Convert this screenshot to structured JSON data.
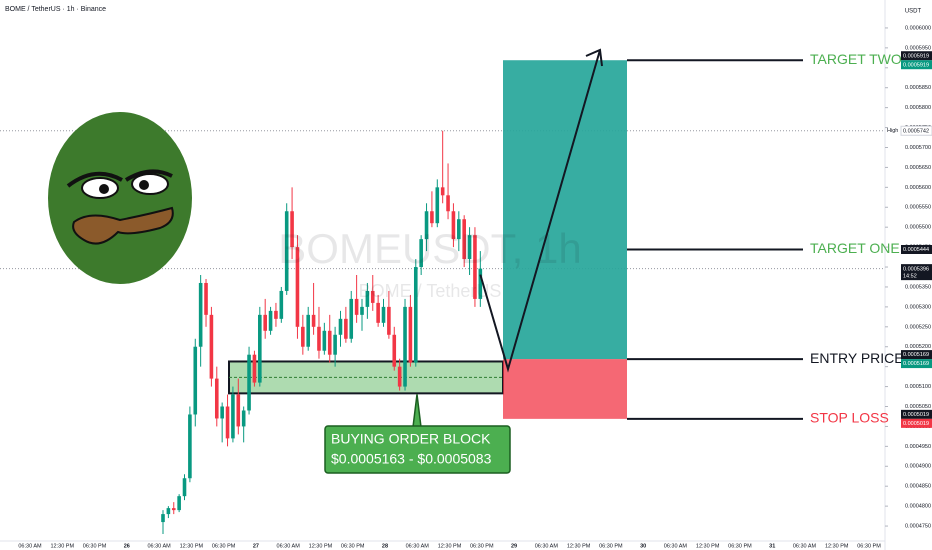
{
  "chart_data": {
    "type": "candlestick",
    "title": "BOME / TetherUS · 1h · Binance",
    "currency": "USDT",
    "watermark": "BOMEUSDT, 1h",
    "watermark_subtitle": "BOME / TetherUS",
    "up_color": "#089981",
    "down_color": "#f23645",
    "x_labels": [
      "06:30 AM",
      "12:30 PM",
      "06:30 PM",
      "26",
      "06:30 AM",
      "12:30 PM",
      "06:30 PM",
      "27",
      "06:30 AM",
      "12:30 PM",
      "06:30 PM",
      "28",
      "06:30 AM",
      "12:30 PM",
      "06:30 PM",
      "29",
      "06:30 AM",
      "12:30 PM",
      "06:30 PM",
      "30",
      "06:30 AM",
      "12:30 PM",
      "06:30 PM",
      "31",
      "06:30 AM",
      "12:30 PM",
      "06:30 PM"
    ],
    "open": [
      0.000476,
      0.000478,
      0.0004795,
      0.000479,
      0.0004825,
      0.000487,
      0.000503,
      0.00052,
      0.000536,
      0.000528,
      0.000512,
      0.000502,
      0.000505,
      0.000497,
      0.000508,
      0.0005,
      0.000504,
      0.000518,
      0.000511,
      0.000528,
      0.000524,
      0.000529,
      0.000527,
      0.000534,
      0.000554,
      0.000545,
      0.000525,
      0.00052,
      0.000528,
      0.000525,
      0.000519,
      0.000524,
      0.000518,
      0.000523,
      0.000527,
      0.000522,
      0.000532,
      0.000528,
      0.00053,
      0.000534,
      0.000531,
      0.000526,
      0.00053,
      0.000523,
      0.000515,
      0.00051,
      0.00053,
      0.000516,
      0.00054,
      0.000547,
      0.000554,
      0.000551,
      0.00056,
      0.000558,
      0.000554,
      0.000547,
      0.000552,
      0.000542,
      0.000548,
      0.000532
    ],
    "high": [
      0.000479,
      0.00048,
      0.000481,
      0.000483,
      0.000488,
      0.000505,
      0.000522,
      0.000538,
      0.000537,
      0.00053,
      0.000515,
      0.000506,
      0.000508,
      0.00051,
      0.000512,
      0.000505,
      0.00052,
      0.000519,
      0.00053,
      0.000532,
      0.00053,
      0.000531,
      0.000535,
      0.000556,
      0.00056,
      0.000548,
      0.000528,
      0.00053,
      0.000536,
      0.00053,
      0.000526,
      0.000528,
      0.000525,
      0.000529,
      0.00053,
      0.000534,
      0.000538,
      0.000532,
      0.000536,
      0.000538,
      0.000533,
      0.000532,
      0.000534,
      0.000525,
      0.000517,
      0.000532,
      0.000533,
      0.000542,
      0.000548,
      0.000556,
      0.000559,
      0.000562,
      0.0005742,
      0.000566,
      0.000556,
      0.000554,
      0.000553,
      0.00055,
      0.00055,
      0.000544
    ],
    "low": [
      0.000473,
      0.000477,
      0.000478,
      0.0004785,
      0.0004815,
      0.000486,
      0.0005,
      0.000515,
      0.000525,
      0.00051,
      0.0005,
      0.000496,
      0.000495,
      0.000496,
      0.000498,
      0.000496,
      0.000503,
      0.00051,
      0.00051,
      0.000522,
      0.000523,
      0.000525,
      0.000526,
      0.000533,
      0.000542,
      0.000522,
      0.000518,
      0.000519,
      0.000523,
      0.000517,
      0.000518,
      0.000516,
      0.000515,
      0.00052,
      0.000521,
      0.000521,
      0.000526,
      0.000524,
      0.000527,
      0.000529,
      0.000525,
      0.000525,
      0.000522,
      0.000514,
      0.000509,
      0.000509,
      0.000515,
      0.000515,
      0.000538,
      0.000544,
      0.00055,
      0.00055,
      0.000556,
      0.000552,
      0.000545,
      0.000544,
      0.00054,
      0.000538,
      0.00053,
      0.00053
    ],
    "close": [
      0.000478,
      0.0004795,
      0.000479,
      0.0004825,
      0.000487,
      0.000503,
      0.00052,
      0.000536,
      0.000528,
      0.000512,
      0.000502,
      0.000505,
      0.000497,
      0.000508,
      0.0005,
      0.000504,
      0.000518,
      0.000511,
      0.000528,
      0.000524,
      0.000529,
      0.000527,
      0.000534,
      0.000554,
      0.000545,
      0.000525,
      0.00052,
      0.000528,
      0.000525,
      0.000519,
      0.000524,
      0.000518,
      0.000523,
      0.000527,
      0.000522,
      0.000532,
      0.000528,
      0.00053,
      0.000534,
      0.000531,
      0.000526,
      0.00053,
      0.000523,
      0.000515,
      0.00051,
      0.00053,
      0.000516,
      0.00054,
      0.000547,
      0.000554,
      0.000551,
      0.00056,
      0.000558,
      0.000554,
      0.000547,
      0.000552,
      0.000542,
      0.000548,
      0.000532,
      0.0005396
    ],
    "ylim": [
      0.0004715,
      0.000604
    ],
    "yticks": [
      {
        "value": 0.0006,
        "label": "0.0006000"
      },
      {
        "value": 0.000595,
        "label": "0.0005950"
      },
      {
        "value": 0.00059,
        "label": "0.0005900"
      },
      {
        "value": 0.000585,
        "label": "0.0005850"
      },
      {
        "value": 0.00058,
        "label": "0.0005800"
      },
      {
        "value": 0.000575,
        "label": "0.0005750"
      },
      {
        "value": 0.00057,
        "label": "0.0005700"
      },
      {
        "value": 0.000565,
        "label": "0.0005650"
      },
      {
        "value": 0.00056,
        "label": "0.0005600"
      },
      {
        "value": 0.000555,
        "label": "0.0005550"
      },
      {
        "value": 0.00055,
        "label": "0.0005500"
      },
      {
        "value": 0.000545,
        "label": "0.0005450"
      },
      {
        "value": 0.00054,
        "label": "0.0005400"
      },
      {
        "value": 0.000535,
        "label": "0.0005350"
      },
      {
        "value": 0.00053,
        "label": "0.0005300"
      },
      {
        "value": 0.000525,
        "label": "0.0005250"
      },
      {
        "value": 0.00052,
        "label": "0.0005200"
      },
      {
        "value": 0.000515,
        "label": "0.0005150"
      },
      {
        "value": 0.00051,
        "label": "0.0005100"
      },
      {
        "value": 0.000505,
        "label": "0.0005050"
      },
      {
        "value": 0.0005,
        "label": "0.0005000"
      },
      {
        "value": 0.000495,
        "label": "0.0004950"
      },
      {
        "value": 0.00049,
        "label": "0.0004900"
      },
      {
        "value": 0.000485,
        "label": "0.0004850"
      },
      {
        "value": 0.00048,
        "label": "0.0004800"
      },
      {
        "value": 0.000475,
        "label": "0.0004750"
      }
    ],
    "high_marker": {
      "label": "High",
      "value": 0.0005742
    },
    "last_price": {
      "value": 0.0005396,
      "countdown": "14:52"
    },
    "levels": [
      {
        "name": "TARGET TWO",
        "value": 0.0005919,
        "color": "#4caf50",
        "badge_colors": [
          "#131722",
          "#089981"
        ]
      },
      {
        "name": "TARGET ONE",
        "value": 0.0005444,
        "color": "#4caf50",
        "badge_colors": [
          "#131722"
        ]
      },
      {
        "name": "ENTRY PRICE",
        "value": 0.0005169,
        "color": "#131722",
        "badge_colors": [
          "#131722",
          "#089981"
        ]
      },
      {
        "name": "STOP LOSS",
        "value": 0.0005019,
        "color": "#f23645",
        "badge_colors": [
          "#131722",
          "#f23645"
        ]
      }
    ],
    "order_block": {
      "title": "BUYING ORDER BLOCK",
      "range_label": "$0.0005163 - $0.0005083",
      "high": 0.0005163,
      "low": 0.0005083
    }
  }
}
